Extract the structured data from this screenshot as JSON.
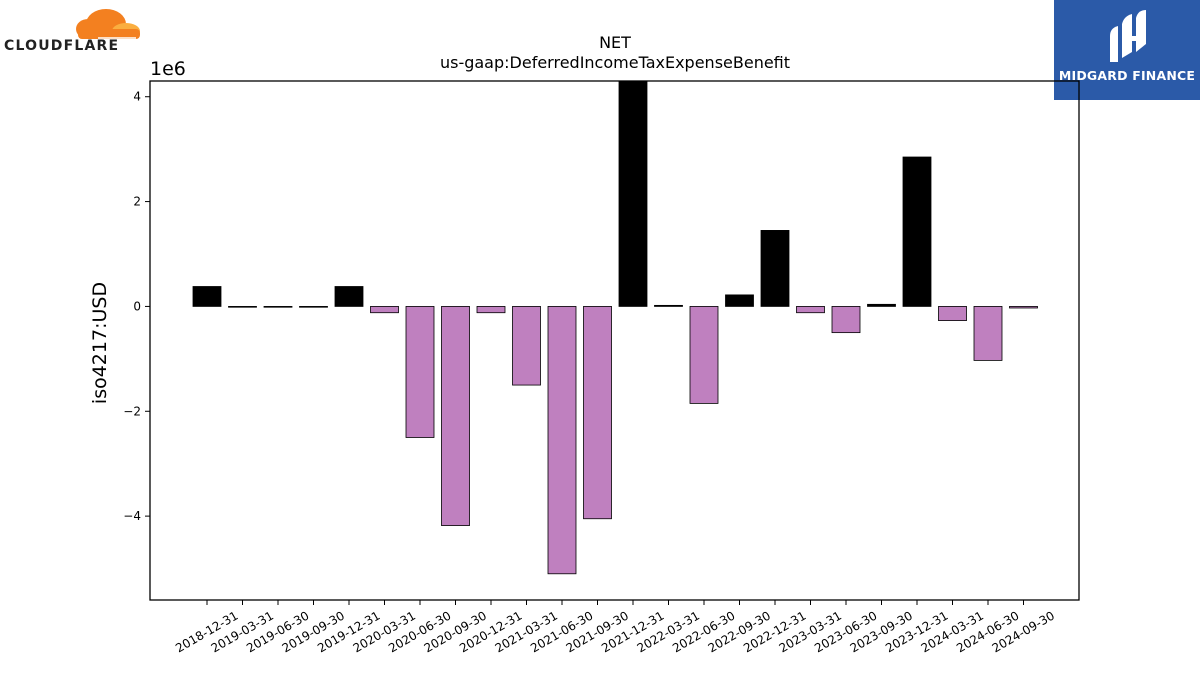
{
  "logos": {
    "cloudflare": {
      "text": "CLOUDFLARE",
      "icon": "cloud-icon",
      "color": "#f38020"
    },
    "midgard": {
      "text": "MIDGARD FINANCE",
      "icon": "midgard-mark-icon",
      "color": "#2b5aa8"
    }
  },
  "chart_data": {
    "type": "bar",
    "title": "NET",
    "subtitle": "us-gaap:DeferredIncomeTaxExpenseBenefit",
    "xlabel": "",
    "ylabel": "iso4217:USD",
    "y_scale_label": "1e6",
    "ylim": [
      -5.6,
      4.3
    ],
    "yticks": [
      -4,
      -2,
      0,
      2,
      4
    ],
    "ytick_labels": [
      "−4",
      "−2",
      "0",
      "2",
      "4"
    ],
    "grid": false,
    "colors": {
      "positive": "#000000",
      "negative": "#bf80bf"
    },
    "categories": [
      "2018-12-31",
      "2019-03-31",
      "2019-06-30",
      "2019-09-30",
      "2019-12-31",
      "2020-03-31",
      "2020-06-30",
      "2020-09-30",
      "2020-12-31",
      "2021-03-31",
      "2021-06-30",
      "2021-09-30",
      "2021-12-31",
      "2022-03-31",
      "2022-06-30",
      "2022-09-30",
      "2022-12-31",
      "2023-03-31",
      "2023-06-30",
      "2023-09-30",
      "2023-12-31",
      "2024-03-31",
      "2024-06-30",
      "2024-09-30"
    ],
    "values": [
      0.38,
      -0.01,
      -0.01,
      -0.01,
      0.38,
      -0.12,
      -2.5,
      -4.18,
      -0.12,
      -1.5,
      -5.1,
      -4.05,
      4.3,
      0.02,
      -1.85,
      0.22,
      1.45,
      -0.12,
      -0.5,
      0.04,
      2.85,
      -0.27,
      -1.03,
      -0.03
    ]
  }
}
